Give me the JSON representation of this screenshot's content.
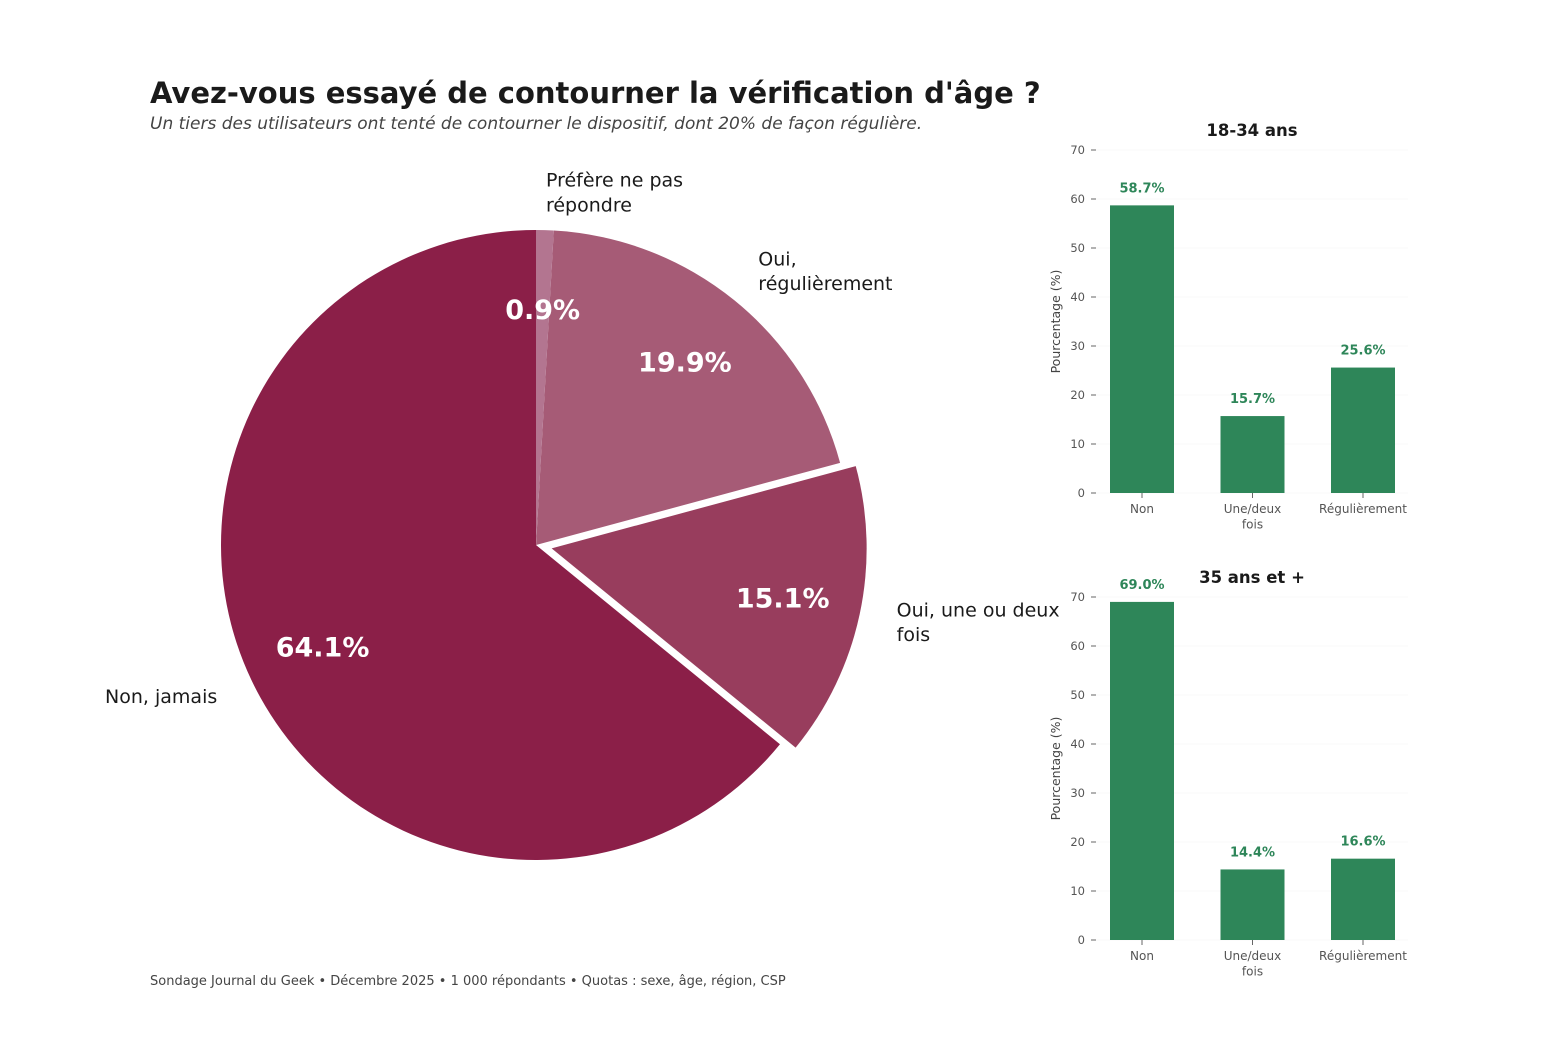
{
  "header": {
    "title": "Avez-vous essayé de contourner la vérification d'âge ?",
    "subtitle": "Un tiers des utilisateurs ont tenté de contourner le dispositif, dont 20% de façon régulière."
  },
  "footer": {
    "source": "Sondage Journal du Geek • Décembre 2025 • 1 000 répondants • Quotas : sexe, âge, région, CSP"
  },
  "colors": {
    "pie": [
      "#8b1f48",
      "#983d5d",
      "#a65b76",
      "#b37590"
    ],
    "bar": "#2e8659",
    "bar_label": "#2e8659",
    "pct_text": "#ffffff"
  },
  "chart_data": [
    {
      "type": "pie",
      "title": "",
      "start_angle_deg": 90,
      "direction": "counterclockwise",
      "exploded": "Oui, une ou deux fois",
      "slices": [
        {
          "label": "Non, jamais",
          "value": 64.1,
          "pct_label": "64.1%"
        },
        {
          "label": "Oui, une ou deux fois",
          "value": 15.1,
          "pct_label": "15.1%"
        },
        {
          "label": "Oui, régulièrement",
          "value": 19.9,
          "pct_label": "19.9%"
        },
        {
          "label": "Préfère ne pas répondre",
          "value": 0.9,
          "pct_label": "0.9%"
        }
      ]
    },
    {
      "type": "bar",
      "title": "18-34 ans",
      "categories": [
        "Non",
        "Une/deux fois",
        "Régulièrement"
      ],
      "values": [
        58.7,
        15.7,
        25.6
      ],
      "data_labels": [
        "58.7%",
        "15.7%",
        "25.6%"
      ],
      "ylabel": "Pourcentage (%)",
      "xlabel": "",
      "ylim": [
        0,
        70
      ],
      "yticks": [
        0,
        10,
        20,
        30,
        40,
        50,
        60,
        70
      ],
      "grid": true
    },
    {
      "type": "bar",
      "title": "35 ans et +",
      "categories": [
        "Non",
        "Une/deux fois",
        "Régulièrement"
      ],
      "values": [
        69.0,
        14.4,
        16.6
      ],
      "data_labels": [
        "69.0%",
        "14.4%",
        "16.6%"
      ],
      "ylabel": "Pourcentage (%)",
      "xlabel": "",
      "ylim": [
        0,
        70
      ],
      "yticks": [
        0,
        10,
        20,
        30,
        40,
        50,
        60,
        70
      ],
      "grid": true
    }
  ]
}
